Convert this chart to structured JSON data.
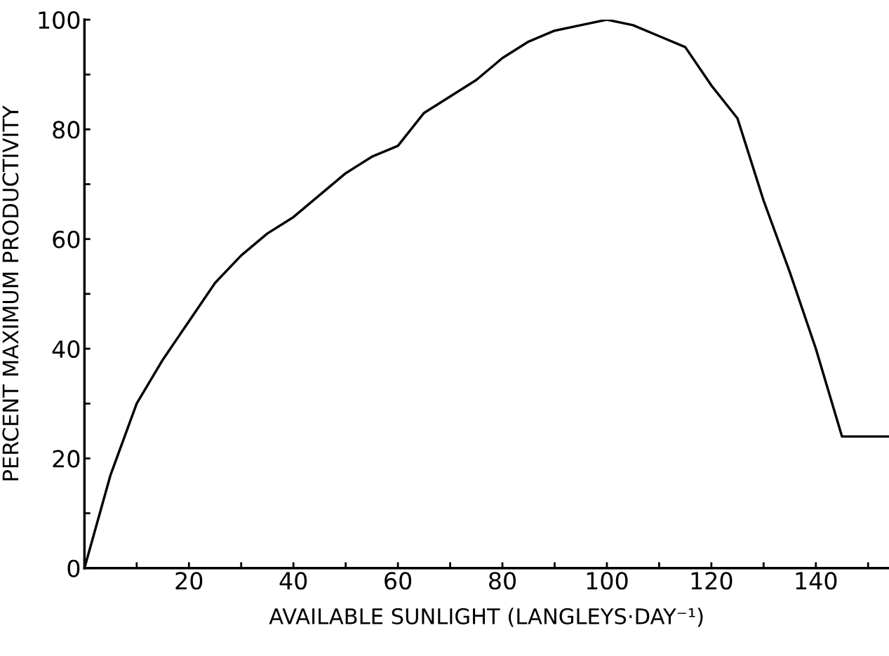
{
  "chart_data": {
    "type": "line",
    "xlabel": "AVAILABLE SUNLIGHT (LANGLEYS·DAY⁻¹)",
    "ylabel": "PERCENT MAXIMUM PRODUCTIVITY",
    "x": [
      0,
      5,
      10,
      15,
      20,
      25,
      30,
      35,
      40,
      45,
      50,
      55,
      60,
      65,
      70,
      75,
      80,
      85,
      90,
      95,
      100,
      105,
      110,
      115,
      120,
      125,
      130,
      135,
      140,
      145,
      154
    ],
    "series": [
      {
        "color": "#000000",
        "values": [
          0,
          17,
          30,
          38,
          45,
          52,
          57,
          61,
          64,
          68,
          72,
          75,
          77,
          83,
          86,
          89,
          93,
          96,
          98,
          99,
          100,
          99,
          97,
          95,
          88,
          82,
          67,
          54,
          40,
          24,
          24
        ]
      }
    ],
    "xlim": [
      0,
      154
    ],
    "ylim": [
      0,
      100
    ],
    "xticks": [
      {
        "value": 10,
        "label": null
      },
      20,
      {
        "value": 30,
        "label": null
      },
      40,
      {
        "value": 50,
        "label": null
      },
      60,
      {
        "value": 70,
        "label": null
      },
      80,
      {
        "value": 90,
        "label": null
      },
      100,
      {
        "value": 110,
        "label": null
      },
      120,
      {
        "value": 130,
        "label": null
      },
      140,
      {
        "value": 150,
        "label": null
      }
    ],
    "yticks": [
      0,
      {
        "value": 10,
        "label": null
      },
      20,
      {
        "value": 30,
        "label": null
      },
      40,
      {
        "value": 50,
        "label": null
      },
      60,
      {
        "value": 70,
        "label": null
      },
      80,
      {
        "value": 90,
        "label": null
      },
      100
    ],
    "grid": false,
    "legend": false,
    "marker": "none",
    "line_style": "solid"
  }
}
